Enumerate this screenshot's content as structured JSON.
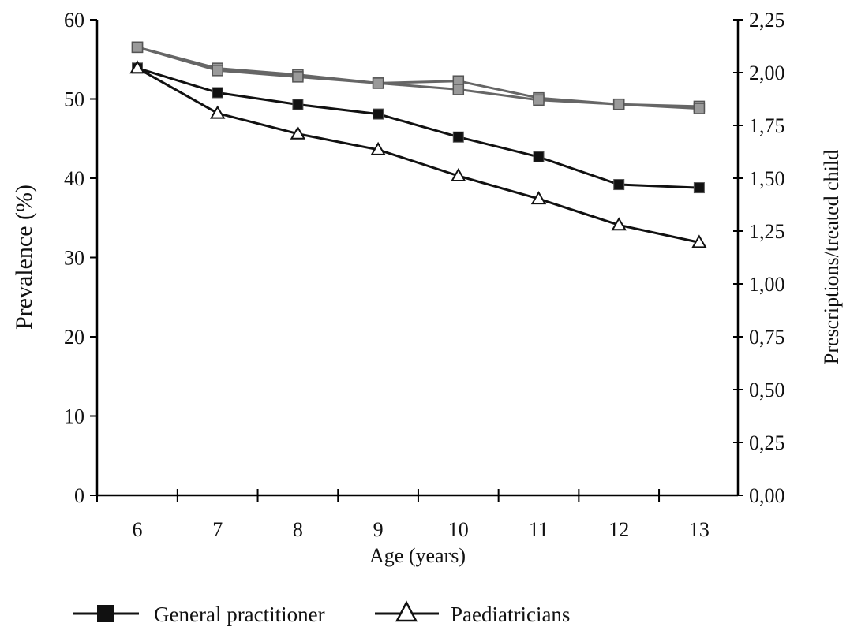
{
  "chart_data": {
    "type": "line",
    "x": [
      6,
      7,
      8,
      9,
      10,
      11,
      12,
      13
    ],
    "xlabel": "Age (years)",
    "ylabel": "Prevalence (%)",
    "y2label": "Prescriptions/treated child",
    "ylim": [
      0,
      60
    ],
    "y2lim": [
      0,
      2.25
    ],
    "y_ticks": [
      "0",
      "10",
      "20",
      "30",
      "40",
      "50",
      "60"
    ],
    "y2_ticks": [
      "0,00",
      "0,25",
      "0,50",
      "0,75",
      "1,00",
      "1,25",
      "1,50",
      "1,75",
      "2,00",
      "2,25"
    ],
    "x_ticks": [
      "6",
      "7",
      "8",
      "9",
      "10",
      "11",
      "12",
      "13"
    ],
    "series": [
      {
        "name": "General practitioner",
        "axis": "left",
        "marker": "filled-square",
        "color": "#111111",
        "values": [
          53.9,
          50.8,
          49.3,
          48.1,
          45.2,
          42.7,
          39.2,
          38.8
        ]
      },
      {
        "name": "Paediatricians",
        "axis": "left",
        "marker": "open-triangle",
        "color": "#111111",
        "values": [
          53.9,
          48.2,
          45.6,
          43.6,
          40.3,
          37.4,
          34.1,
          31.9
        ]
      },
      {
        "axis": "right",
        "marker": "grey-square",
        "color": "#666666",
        "values": [
          2.12,
          2.02,
          1.99,
          1.95,
          1.96,
          1.88,
          1.85,
          1.84
        ]
      },
      {
        "axis": "right",
        "marker": "grey-square",
        "color": "#666666",
        "values": [
          2.12,
          2.01,
          1.98,
          1.95,
          1.92,
          1.87,
          1.85,
          1.83
        ]
      }
    ],
    "legend": {
      "position": "bottom",
      "items": [
        "General practitioner",
        "Paediatricians"
      ]
    }
  }
}
